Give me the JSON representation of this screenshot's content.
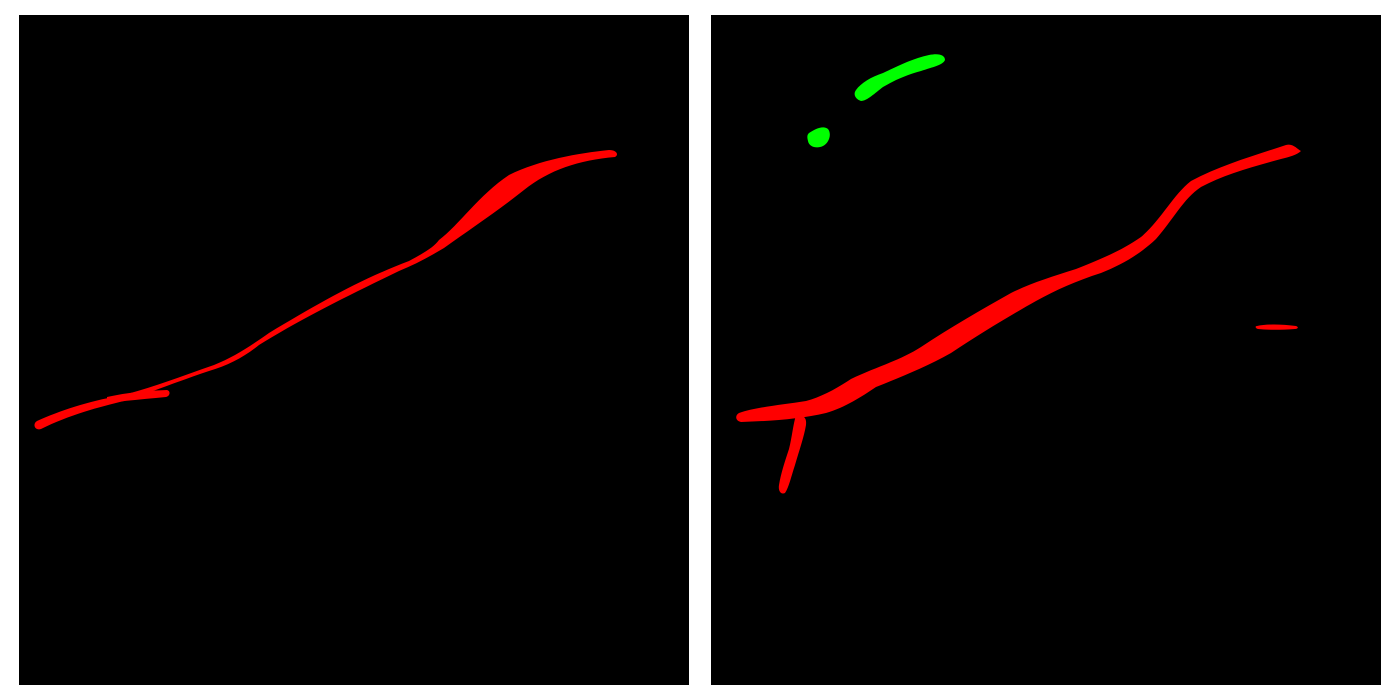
{
  "panels": [
    {
      "id": "left",
      "description_label": "",
      "masks": [
        {
          "class": "red",
          "kind": "main-streak"
        },
        {
          "class": "red",
          "kind": "short-tail"
        }
      ]
    },
    {
      "id": "right",
      "description_label": "",
      "masks": [
        {
          "class": "green",
          "kind": "blob-large"
        },
        {
          "class": "green",
          "kind": "blob-small"
        },
        {
          "class": "red",
          "kind": "main-streak"
        },
        {
          "class": "red",
          "kind": "branch"
        },
        {
          "class": "red",
          "kind": "small-fragment"
        }
      ]
    }
  ],
  "colors": {
    "background_page": "#ffffff",
    "panel_background": "#000000",
    "red": "#ff0000",
    "green": "#00ff00"
  }
}
